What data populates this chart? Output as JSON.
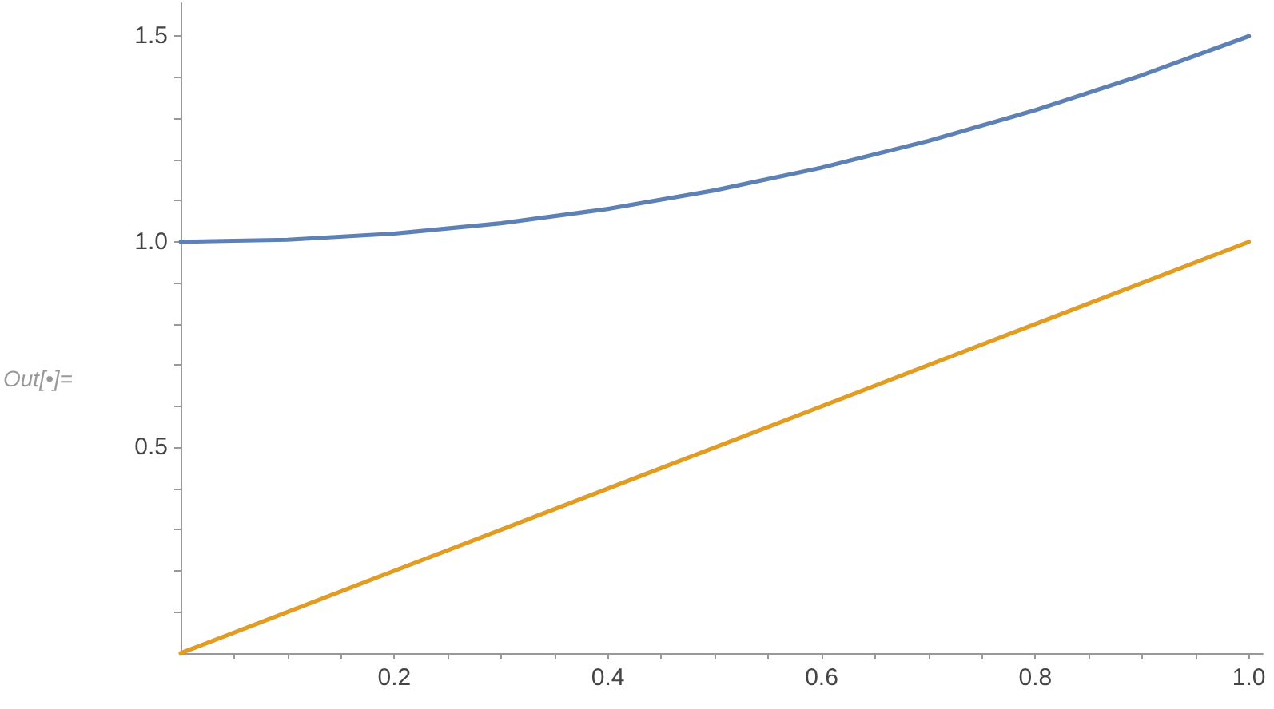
{
  "chart_data": {
    "type": "line",
    "x": [
      0,
      0.1,
      0.2,
      0.3,
      0.4,
      0.5,
      0.6,
      0.7,
      0.8,
      0.9,
      1
    ],
    "series": [
      {
        "color": "#5e81b5",
        "values": [
          1,
          1.005,
          1.02,
          1.045,
          1.08,
          1.125,
          1.18,
          1.245,
          1.32,
          1.405,
          1.5
        ]
      },
      {
        "color": "#e19c24",
        "x": [
          0,
          1
        ],
        "values": [
          0,
          1
        ]
      }
    ],
    "xlim": [
      0,
      1.013
    ],
    "ylim": [
      0,
      1.58
    ],
    "xticks": [
      {
        "value": 0.05,
        "label": null
      },
      {
        "value": 0.1,
        "label": null
      },
      {
        "value": 0.15,
        "label": null
      },
      {
        "value": 0.2,
        "label": "0.2"
      },
      {
        "value": 0.25,
        "label": null
      },
      {
        "value": 0.3,
        "label": null
      },
      {
        "value": 0.35,
        "label": null
      },
      {
        "value": 0.4,
        "label": "0.4"
      },
      {
        "value": 0.45,
        "label": null
      },
      {
        "value": 0.5,
        "label": null
      },
      {
        "value": 0.55,
        "label": null
      },
      {
        "value": 0.6,
        "label": "0.6"
      },
      {
        "value": 0.65,
        "label": null
      },
      {
        "value": 0.7,
        "label": null
      },
      {
        "value": 0.75,
        "label": null
      },
      {
        "value": 0.8,
        "label": "0.8"
      },
      {
        "value": 0.85,
        "label": null
      },
      {
        "value": 0.9,
        "label": null
      },
      {
        "value": 0.95,
        "label": null
      },
      {
        "value": 1,
        "label": "1.0"
      }
    ],
    "yticks": [
      {
        "value": 0.1,
        "label": null
      },
      {
        "value": 0.2,
        "label": null
      },
      {
        "value": 0.3,
        "label": null
      },
      {
        "value": 0.4,
        "label": null
      },
      {
        "value": 0.5,
        "label": "0.5"
      },
      {
        "value": 0.6,
        "label": null
      },
      {
        "value": 0.7,
        "label": null
      },
      {
        "value": 0.8,
        "label": null
      },
      {
        "value": 0.9,
        "label": null
      },
      {
        "value": 1,
        "label": "1.0"
      },
      {
        "value": 1.1,
        "label": null
      },
      {
        "value": 1.2,
        "label": null
      },
      {
        "value": 1.3,
        "label": null
      },
      {
        "value": 1.4,
        "label": null
      },
      {
        "value": 1.5,
        "label": "1.5"
      }
    ],
    "annotations": [
      "Out[•]="
    ],
    "grid": false,
    "marker": "none",
    "line_style": "solid"
  }
}
